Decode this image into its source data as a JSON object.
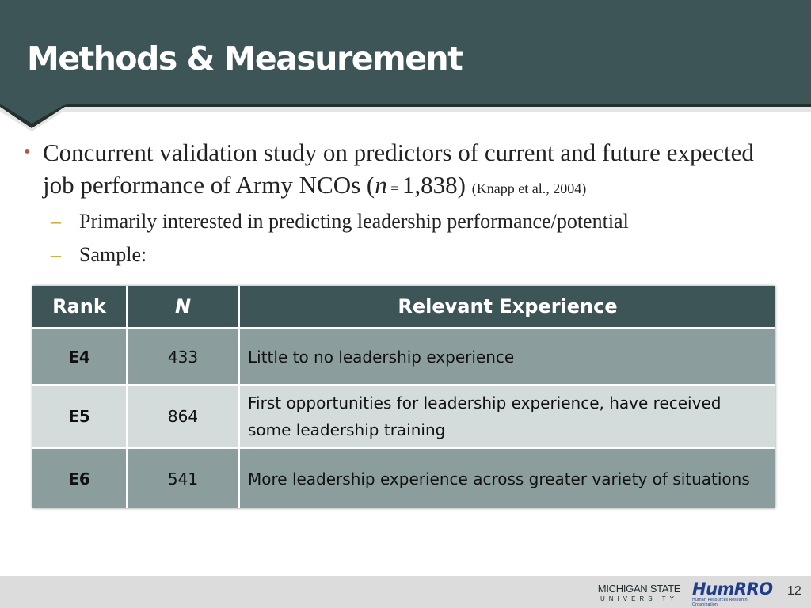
{
  "slide": {
    "title": "Methods & Measurement",
    "page_number": "12"
  },
  "bullets": {
    "main": {
      "text_1": "Concurrent validation study on predictors of current and future expected job performance of Army NCOs (",
      "n_symbol": "n",
      "n_equals": " = ",
      "n_value": "1,838",
      "close_paren": ")",
      "citation": "(Knapp et al., 2004)"
    },
    "sub": [
      "Primarily interested in predicting leadership performance/potential",
      "Sample:"
    ]
  },
  "table": {
    "headers": [
      "Rank",
      "N",
      "Relevant Experience"
    ],
    "rows": [
      {
        "rank": "E4",
        "n": "433",
        "experience": "Little to no leadership experience"
      },
      {
        "rank": "E5",
        "n": "864",
        "experience": "First opportunities for leadership experience, have received some leadership training"
      },
      {
        "rank": "E6",
        "n": "541",
        "experience": "More leadership experience across greater variety of situations"
      }
    ]
  },
  "footer": {
    "msu_line1": "MICHIGAN STATE",
    "msu_line2": "UNIVERSITY",
    "humrro_name": "HumRRO",
    "humrro_sub": "Human Resources Research Organization"
  },
  "colors": {
    "header_bg": "#3e5558",
    "bullet_dot": "#c0504d",
    "sub_dash": "#c9a227",
    "row_dark": "#8b9d9d",
    "row_light": "#d3dbdb"
  }
}
